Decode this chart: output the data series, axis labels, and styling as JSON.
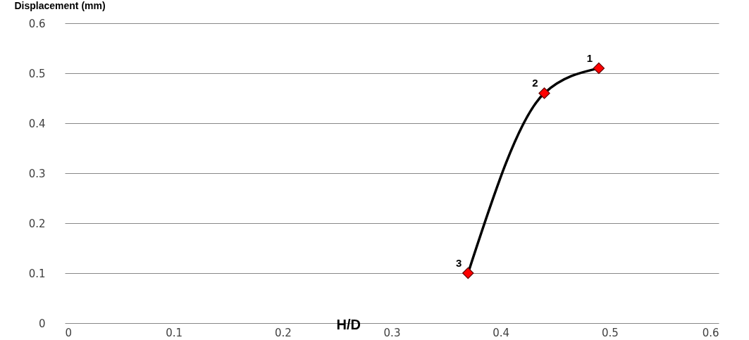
{
  "chart_data": {
    "type": "line",
    "xlabel": "H/D",
    "ylabel": "Displacement (mm)",
    "x": [
      0.37,
      0.44,
      0.49
    ],
    "series": [
      {
        "type": "line",
        "color": "#000000",
        "marker": "none",
        "values": [
          0.1,
          0.46,
          0.51
        ]
      },
      {
        "type": "scatter",
        "color": "#ff0000",
        "marker": "diamond",
        "values": [
          0.1,
          0.46,
          0.51
        ]
      }
    ],
    "xlim": [
      0,
      0.6
    ],
    "xticks": [
      0,
      0.1,
      0.2,
      0.3,
      0.4,
      0.5,
      0.6
    ],
    "ylim": [
      0,
      0.6
    ],
    "yticks": [
      0,
      0.1,
      0.2,
      0.3,
      0.4,
      0.5,
      0.6
    ],
    "grid": "y",
    "annotations": [
      {
        "text": "1",
        "x": 0.49,
        "y": 0.51
      },
      {
        "text": "2",
        "x": 0.44,
        "y": 0.46
      },
      {
        "text": "3",
        "x": 0.37,
        "y": 0.1
      }
    ]
  }
}
